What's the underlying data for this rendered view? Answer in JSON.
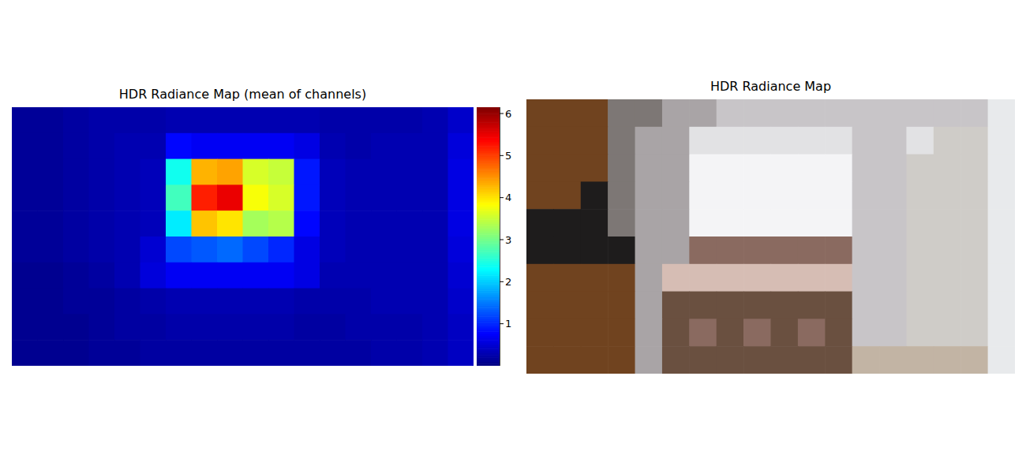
{
  "chart_data": [
    {
      "type": "heatmap",
      "title": "HDR Radiance Map (mean of channels)",
      "tick_labels": false,
      "cells": [
        [
          0.15,
          0.15,
          0.2,
          0.25,
          0.25,
          0.25,
          0.3,
          0.3,
          0.3,
          0.3,
          0.3,
          0.3,
          0.25,
          0.25,
          0.25,
          0.25,
          0.3,
          0.45
        ],
        [
          0.15,
          0.15,
          0.2,
          0.25,
          0.3,
          0.3,
          0.8,
          0.7,
          0.7,
          0.7,
          0.7,
          0.6,
          0.3,
          0.25,
          0.3,
          0.3,
          0.3,
          0.55
        ],
        [
          0.15,
          0.15,
          0.2,
          0.25,
          0.3,
          0.35,
          2.4,
          4.3,
          4.4,
          3.6,
          3.5,
          0.9,
          0.35,
          0.3,
          0.3,
          0.3,
          0.3,
          0.6
        ],
        [
          0.15,
          0.15,
          0.2,
          0.25,
          0.3,
          0.35,
          2.7,
          5.2,
          5.5,
          3.8,
          3.6,
          0.9,
          0.35,
          0.3,
          0.3,
          0.3,
          0.3,
          0.6
        ],
        [
          0.15,
          0.15,
          0.2,
          0.25,
          0.3,
          0.35,
          2.2,
          4.2,
          4.0,
          3.3,
          3.4,
          0.8,
          0.35,
          0.3,
          0.3,
          0.3,
          0.3,
          0.6
        ],
        [
          0.15,
          0.15,
          0.2,
          0.25,
          0.3,
          0.5,
          1.2,
          1.3,
          1.4,
          1.2,
          1.0,
          0.6,
          0.35,
          0.3,
          0.3,
          0.3,
          0.3,
          0.55
        ],
        [
          0.1,
          0.1,
          0.15,
          0.2,
          0.3,
          0.55,
          0.7,
          0.7,
          0.7,
          0.7,
          0.7,
          0.6,
          0.3,
          0.3,
          0.3,
          0.3,
          0.3,
          0.5
        ],
        [
          0.1,
          0.1,
          0.15,
          0.15,
          0.2,
          0.25,
          0.3,
          0.3,
          0.3,
          0.3,
          0.3,
          0.25,
          0.25,
          0.25,
          0.3,
          0.3,
          0.3,
          0.45
        ],
        [
          0.1,
          0.1,
          0.1,
          0.15,
          0.2,
          0.2,
          0.25,
          0.25,
          0.25,
          0.25,
          0.25,
          0.2,
          0.2,
          0.25,
          0.25,
          0.25,
          0.3,
          0.4
        ],
        [
          0.1,
          0.1,
          0.1,
          0.15,
          0.15,
          0.2,
          0.2,
          0.2,
          0.2,
          0.2,
          0.2,
          0.2,
          0.2,
          0.2,
          0.25,
          0.25,
          0.3,
          0.4
        ]
      ],
      "colorbar": {
        "range": [
          0,
          6.15
        ],
        "ticks": [
          1,
          2,
          3,
          4,
          5,
          6
        ]
      }
    },
    {
      "type": "image",
      "title": "HDR Radiance Map",
      "tick_labels": false,
      "colors": [
        [
          "#70431f",
          "#70431f",
          "#70431f",
          "#7d7775",
          "#7d7775",
          "#a9a4a6",
          "#a9a4a6",
          "#c8c5c8",
          "#c8c5c8",
          "#c8c5c8",
          "#c8c5c8",
          "#c8c5c8",
          "#c8c5c8",
          "#c8c5c8",
          "#c8c5c8",
          "#c8c5c8",
          "#c8c5c8",
          "#e8eaec"
        ],
        [
          "#70431f",
          "#70431f",
          "#70431f",
          "#7d7775",
          "#a9a4a6",
          "#a9a4a6",
          "#e2e2e4",
          "#e2e2e4",
          "#e2e2e4",
          "#e2e2e4",
          "#e2e2e4",
          "#e2e2e4",
          "#c8c5c8",
          "#c8c5c8",
          "#e2e2e4",
          "#cfccc8",
          "#cfccc8",
          "#e8eaec"
        ],
        [
          "#70431f",
          "#70431f",
          "#70431f",
          "#7d7775",
          "#a9a4a6",
          "#a9a4a6",
          "#f4f4f6",
          "#f4f4f6",
          "#f4f4f6",
          "#f4f4f6",
          "#f4f4f6",
          "#f4f4f6",
          "#c8c5c8",
          "#c8c5c8",
          "#cfccc8",
          "#cfccc8",
          "#cfccc8",
          "#e8eaec"
        ],
        [
          "#70431f",
          "#70431f",
          "#1e1c1c",
          "#7d7775",
          "#a9a4a6",
          "#a9a4a6",
          "#f4f4f6",
          "#f4f4f6",
          "#f4f4f6",
          "#f4f4f6",
          "#f4f4f6",
          "#f4f4f6",
          "#c8c5c8",
          "#c8c5c8",
          "#cfccc8",
          "#cfccc8",
          "#cfccc8",
          "#e8eaec"
        ],
        [
          "#1e1c1c",
          "#1e1c1c",
          "#1e1c1c",
          "#7d7775",
          "#a9a4a6",
          "#a9a4a6",
          "#f4f4f6",
          "#f4f4f6",
          "#f4f4f6",
          "#f4f4f6",
          "#f4f4f6",
          "#f4f4f6",
          "#c8c5c8",
          "#c8c5c8",
          "#cfccc8",
          "#cfccc8",
          "#cfccc8",
          "#e8eaec"
        ],
        [
          "#1e1c1c",
          "#1e1c1c",
          "#1e1c1c",
          "#1e1c1c",
          "#a9a4a6",
          "#a9a4a6",
          "#8a6a60",
          "#8a6a60",
          "#8a6a60",
          "#8a6a60",
          "#8a6a60",
          "#8a6a60",
          "#c8c5c8",
          "#c8c5c8",
          "#cfccc8",
          "#cfccc8",
          "#cfccc8",
          "#e8eaec"
        ],
        [
          "#70431f",
          "#70431f",
          "#70431f",
          "#70431f",
          "#a9a4a6",
          "#d6bdb4",
          "#d6bdb4",
          "#d6bdb4",
          "#d6bdb4",
          "#d6bdb4",
          "#d6bdb4",
          "#d6bdb4",
          "#c8c5c8",
          "#c8c5c8",
          "#cfccc8",
          "#cfccc8",
          "#cfccc8",
          "#e8eaec"
        ],
        [
          "#70431f",
          "#70431f",
          "#70431f",
          "#70431f",
          "#a9a4a6",
          "#6a5040",
          "#6a5040",
          "#6a5040",
          "#6a5040",
          "#6a5040",
          "#6a5040",
          "#6a5040",
          "#c8c5c8",
          "#c8c5c8",
          "#cfccc8",
          "#cfccc8",
          "#cfccc8",
          "#e8eaec"
        ],
        [
          "#70431f",
          "#70431f",
          "#70431f",
          "#70431f",
          "#a9a4a6",
          "#6a5040",
          "#8a6a60",
          "#6a5040",
          "#8a6a60",
          "#6a5040",
          "#8a6a60",
          "#6a5040",
          "#c8c5c8",
          "#c8c5c8",
          "#cfccc8",
          "#cfccc8",
          "#cfccc8",
          "#e8eaec"
        ],
        [
          "#70431f",
          "#70431f",
          "#70431f",
          "#70431f",
          "#a9a4a6",
          "#6a5040",
          "#6a5040",
          "#6a5040",
          "#6a5040",
          "#6a5040",
          "#6a5040",
          "#6a5040",
          "#c2b4a4",
          "#c2b4a4",
          "#c2b4a4",
          "#c2b4a4",
          "#c2b4a4",
          "#e8eaec"
        ]
      ]
    }
  ]
}
